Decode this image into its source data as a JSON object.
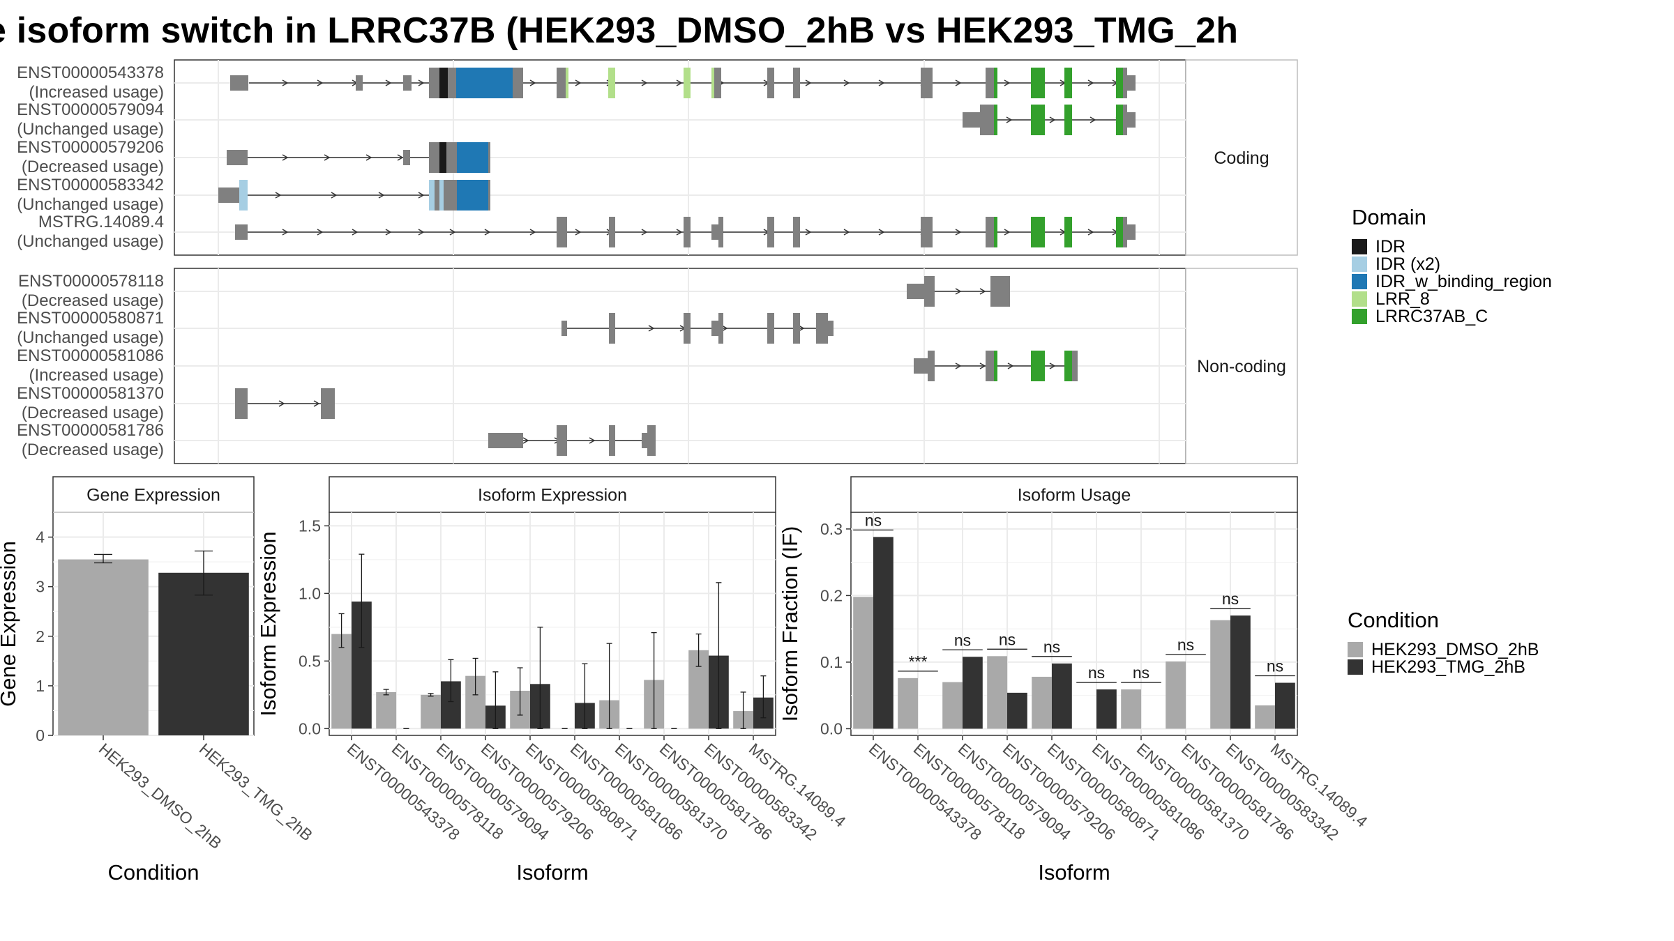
{
  "title": "e isoform switch in LRRC37B (HEK293_DMSO_2hB vs HEK293_TMG_2h",
  "structure": {
    "section_labels": [
      "Coding",
      "Non-coding"
    ],
    "coding": [
      {
        "id": "ENST00000543378",
        "usage": "(Increased usage)"
      },
      {
        "id": "ENST00000579094",
        "usage": "(Unchanged usage)"
      },
      {
        "id": "ENST00000579206",
        "usage": "(Decreased usage)"
      },
      {
        "id": "ENST00000583342",
        "usage": "(Unchanged usage)"
      },
      {
        "id": "MSTRG.14089.4",
        "usage": "(Unchanged usage)"
      }
    ],
    "noncoding": [
      {
        "id": "ENST00000578118",
        "usage": "(Decreased usage)"
      },
      {
        "id": "ENST00000580871",
        "usage": "(Unchanged usage)"
      },
      {
        "id": "ENST00000581086",
        "usage": "(Increased usage)"
      },
      {
        "id": "ENST00000581370",
        "usage": "(Decreased usage)"
      },
      {
        "id": "ENST00000581786",
        "usage": "(Decreased usage)"
      }
    ]
  },
  "legend_domain": {
    "title": "Domain",
    "items": [
      {
        "label": "IDR",
        "color": "#1a1a1a"
      },
      {
        "label": "IDR (x2)",
        "color": "#a6cee3"
      },
      {
        "label": "IDR_w_binding_region",
        "color": "#1f78b4"
      },
      {
        "label": "LRR_8",
        "color": "#b2df8a"
      },
      {
        "label": "LRRC37AB_C",
        "color": "#33a02c"
      }
    ]
  },
  "legend_condition": {
    "title": "Condition",
    "items": [
      {
        "label": "HEK293_DMSO_2hB",
        "color": "#a9a9a9"
      },
      {
        "label": "HEK293_TMG_2hB",
        "color": "#333333"
      }
    ]
  },
  "chart_data": [
    {
      "type": "bar",
      "title": "Gene Expression",
      "xlabel": "Condition",
      "ylabel": "Gene Expression",
      "ylim": [
        0,
        4.5
      ],
      "yticks": [
        0,
        1,
        2,
        3,
        4
      ],
      "categories": [
        "HEK293_DMSO_2hB",
        "HEK293_TMG_2hB"
      ],
      "values": [
        3.55,
        3.28
      ],
      "errors": [
        [
          3.48,
          3.65
        ],
        [
          2.83,
          3.72
        ]
      ],
      "colors": [
        "#a9a9a9",
        "#333333"
      ]
    },
    {
      "type": "bar",
      "title": "Isoform Expression",
      "xlabel": "Isoform",
      "ylabel": "Isoform Expression",
      "ylim": [
        -0.05,
        1.6
      ],
      "yticks": [
        0.0,
        0.5,
        1.0,
        1.5
      ],
      "ytick_labels": [
        "0.0",
        "0.5",
        "1.0",
        "1.5"
      ],
      "categories": [
        "ENST00000543378",
        "ENST00000578118",
        "ENST00000579094",
        "ENST00000579206",
        "ENST00000580871",
        "ENST00000581086",
        "ENST00000581370",
        "ENST00000581786",
        "ENST00000583342",
        "MSTRG.14089.4"
      ],
      "series": [
        {
          "name": "HEK293_DMSO_2hB",
          "values": [
            0.7,
            0.27,
            0.25,
            0.39,
            0.28,
            0.0,
            0.21,
            0.36,
            0.58,
            0.13
          ],
          "err_low": [
            0.6,
            0.25,
            0.24,
            0.25,
            0.1,
            0.0,
            0.0,
            0.0,
            0.46,
            0.0
          ],
          "err_high": [
            0.85,
            0.29,
            0.26,
            0.52,
            0.45,
            0.0,
            0.63,
            0.71,
            0.7,
            0.27
          ]
        },
        {
          "name": "HEK293_TMG_2hB",
          "values": [
            0.94,
            0.0,
            0.35,
            0.17,
            0.33,
            0.19,
            0.0,
            0.0,
            0.54,
            0.23
          ],
          "err_low": [
            0.6,
            0.0,
            0.2,
            0.0,
            0.0,
            0.0,
            0.0,
            0.0,
            0.0,
            0.08
          ],
          "err_high": [
            1.29,
            0.0,
            0.51,
            0.42,
            0.75,
            0.48,
            0.0,
            0.0,
            1.08,
            0.39
          ]
        }
      ]
    },
    {
      "type": "bar",
      "title": "Isoform Usage",
      "xlabel": "Isoform",
      "ylabel": "Isoform Fraction (IF)",
      "ylim": [
        -0.01,
        0.325
      ],
      "yticks": [
        0.0,
        0.1,
        0.2,
        0.3
      ],
      "ytick_labels": [
        "0.0",
        "0.1",
        "0.2",
        "0.3"
      ],
      "categories": [
        "ENST00000543378",
        "ENST00000578118",
        "ENST00000579094",
        "ENST00000579206",
        "ENST00000580871",
        "ENST00000581086",
        "ENST00000581370",
        "ENST00000581786",
        "ENST00000583342",
        "MSTRG.14089.4"
      ],
      "series": [
        {
          "name": "HEK293_DMSO_2hB",
          "values": [
            0.198,
            0.076,
            0.07,
            0.109,
            0.078,
            0.0,
            0.059,
            0.101,
            0.163,
            0.035
          ]
        },
        {
          "name": "HEK293_TMG_2hB",
          "values": [
            0.288,
            0.0,
            0.108,
            0.054,
            0.098,
            0.059,
            0.0,
            0.0,
            0.17,
            0.069
          ]
        }
      ],
      "significance": [
        "ns",
        "***",
        "ns",
        "ns",
        "ns",
        "ns",
        "ns",
        "ns",
        "ns",
        "ns"
      ]
    }
  ]
}
